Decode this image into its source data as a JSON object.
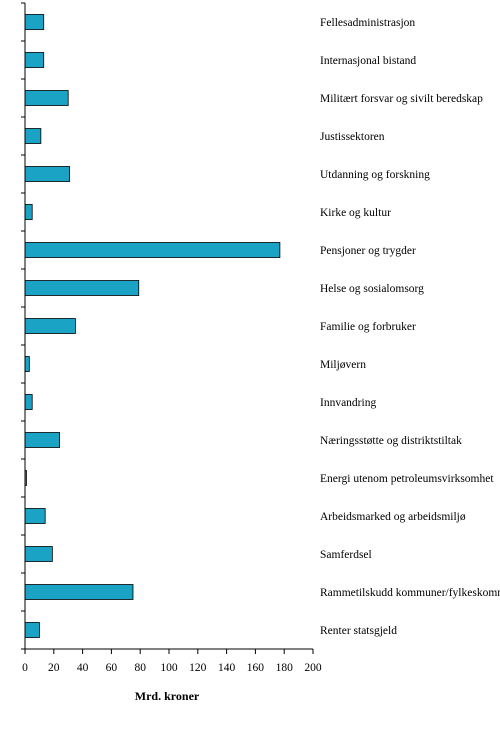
{
  "chart_data": {
    "type": "bar",
    "orientation": "horizontal",
    "title": "",
    "xlabel": "Mrd. kroner",
    "ylabel": "",
    "xlim": [
      0,
      200
    ],
    "xticks": [
      0,
      20,
      40,
      60,
      80,
      100,
      120,
      140,
      160,
      180,
      200
    ],
    "grid": false,
    "legend": "none",
    "bar_color": "#1aa3c4",
    "categories": [
      "Fellesadministrasjon",
      "Internasjonal bistand",
      "Militært forsvar og sivilt beredskap",
      "Justissektoren",
      "Utdanning og forskning",
      "Kirke og kultur",
      "Pensjoner og trygder",
      "Helse og sosialomsorg",
      "Familie og forbruker",
      "Miljøvern",
      "Innvandring",
      "Næringsstøtte og distriktstiltak",
      "Energi utenom petroleumsvirksomhet",
      "Arbeidsmarked og arbeidsmiljø",
      "Samferdsel",
      "Rammetilskudd kommuner/fylkeskommuner",
      "Renter statsgjeld"
    ],
    "values": [
      13,
      13,
      30,
      11,
      31,
      5,
      177,
      79,
      35,
      3,
      5,
      24,
      1,
      14,
      19,
      75,
      10
    ]
  }
}
